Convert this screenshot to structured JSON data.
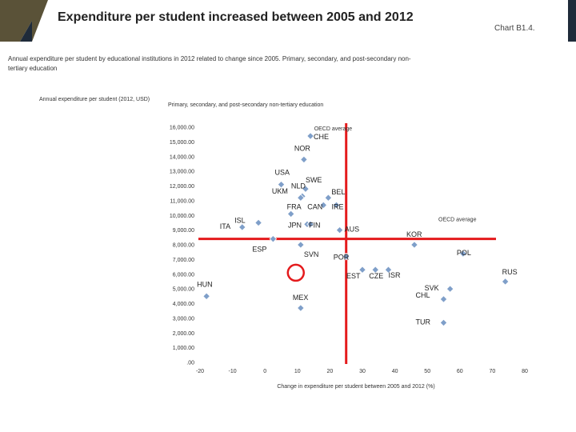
{
  "header": {
    "title": "Expenditure per student increased between 2005 and 2012",
    "chart_ref": "Chart B1.4.",
    "subtitle": "Annual expenditure per student by educational institutions in 2012 related to change since 2005. Primary, secondary, and post-secondary non-tertiary education"
  },
  "colors": {
    "header_dark": "#1f2b3a",
    "header_accent": "#5a5238",
    "reference_line": "#e41a1c",
    "point_fill": "#7f9fc9",
    "highlight_ring": "#e41a1c"
  },
  "chart_data": {
    "type": "scatter",
    "title": "Primary, secondary, and post-secondary non-tertiary education",
    "ylabel": "Annual expenditure per student (2012, USD)",
    "xlabel": "Change in expenditure per student between 2005 and 2012 (%)",
    "xlim": [
      -20,
      80
    ],
    "ylim": [
      0,
      16000
    ],
    "x_ticks": [
      -20,
      -10,
      0,
      10,
      20,
      30,
      40,
      50,
      60,
      70,
      80
    ],
    "x_tick_labels": [
      "-20",
      "-10",
      "0",
      "10",
      "20",
      "30",
      "40",
      "50",
      "60",
      "70",
      "80"
    ],
    "y_ticks": [
      0,
      1000,
      2000,
      3000,
      4000,
      5000,
      6000,
      7000,
      8000,
      9000,
      10000,
      11000,
      12000,
      13000,
      14000,
      15000,
      16000
    ],
    "y_tick_labels": [
      ".00",
      "1,000.00",
      "2,000.00",
      "3,000.00",
      "4,000.00",
      "5,000.00",
      "6,000.00",
      "7,000.00",
      "8,000.00",
      "9,000.00",
      "10,000.00",
      "11,000.00",
      "12,000.00",
      "13,000.00",
      "14,000.00",
      "15,000.00",
      "16,000.00"
    ],
    "oecd_average": {
      "x": 25,
      "y": 8400,
      "x_label": "OECD average",
      "y_label": "OECD average"
    },
    "highlight": {
      "x": 9.5,
      "y": 6100
    },
    "points": [
      {
        "label": "CHE",
        "x": 14,
        "y": 15400
      },
      {
        "label": "NOR",
        "x": 12,
        "y": 13800
      },
      {
        "label": "USA",
        "x": 5,
        "y": 12100
      },
      {
        "label": "SWE",
        "x": 12.5,
        "y": 11800
      },
      {
        "label": "BEL",
        "x": 19.5,
        "y": 11200
      },
      {
        "label": "NLD",
        "x": 11.5,
        "y": 11300
      },
      {
        "label": "UKM",
        "x": 11,
        "y": 11200
      },
      {
        "label": "CAN",
        "x": 18,
        "y": 10700
      },
      {
        "label": "IRE",
        "x": 22,
        "y": 10700
      },
      {
        "label": "FRA",
        "x": 8,
        "y": 10100
      },
      {
        "label": "ISL",
        "x": -2,
        "y": 9500
      },
      {
        "label": "ITA",
        "x": -7,
        "y": 9200
      },
      {
        "label": "JPN",
        "x": 13,
        "y": 9400
      },
      {
        "label": "FIN",
        "x": 14,
        "y": 9400
      },
      {
        "label": "AUS",
        "x": 23,
        "y": 9000
      },
      {
        "label": "KOR",
        "x": 46,
        "y": 8000
      },
      {
        "label": "ESP",
        "x": 2.5,
        "y": 8400
      },
      {
        "label": "SVN",
        "x": 11,
        "y": 8000
      },
      {
        "label": "POR",
        "x": 25,
        "y": 7200
      },
      {
        "label": "POL",
        "x": 61,
        "y": 7400
      },
      {
        "label": "EST",
        "x": 30,
        "y": 6300
      },
      {
        "label": "CZE",
        "x": 34,
        "y": 6300
      },
      {
        "label": "ISR",
        "x": 38,
        "y": 6300
      },
      {
        "label": "RUS",
        "x": 74,
        "y": 5500
      },
      {
        "label": "HUN",
        "x": -18,
        "y": 4500
      },
      {
        "label": "SVK",
        "x": 57,
        "y": 5000
      },
      {
        "label": "CHL",
        "x": 55,
        "y": 4300
      },
      {
        "label": "MEX",
        "x": 11,
        "y": 3700
      },
      {
        "label": "TUR",
        "x": 55,
        "y": 2700
      }
    ]
  }
}
